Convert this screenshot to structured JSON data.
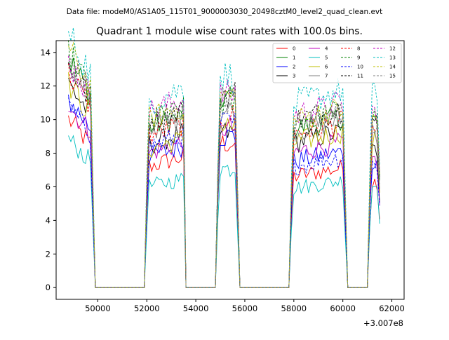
{
  "suptitle": "Data file: modeM0/AS1A05_115T01_9000003030_20498cztM0_level2_quad_clean.evt",
  "chart_data": {
    "type": "line",
    "title": "Quadrant 1 module wise count rates with 100.0s bins.",
    "xlabel": "",
    "ylabel": "",
    "x_offset_label": "+3.007e8",
    "xlim": [
      48300,
      62500
    ],
    "ylim": [
      -0.7,
      14.7
    ],
    "xticks": [
      50000,
      52000,
      54000,
      56000,
      58000,
      60000,
      62000
    ],
    "yticks": [
      0,
      2,
      4,
      6,
      8,
      10,
      12,
      14
    ],
    "legend_position": "top-right",
    "legend_columns": 4,
    "gap_value": 0.0,
    "segments": [
      {
        "start": 48800,
        "end": 49700,
        "zero_at": 49900,
        "gap_end": 51900
      },
      {
        "start": 52000,
        "end": 53500,
        "zero_at": 53600,
        "gap_end": 54800
      },
      {
        "start": 54900,
        "end": 55600,
        "zero_at": 55800,
        "gap_end": 57800
      },
      {
        "start": 57900,
        "end": 60000,
        "zero_at": 60200,
        "gap_end": 61000
      },
      {
        "start": 61100,
        "end": 61500,
        "zero_at": null,
        "gap_end": null
      }
    ],
    "series": [
      {
        "name": "0",
        "color": "#ff0000",
        "dash": "solid",
        "levels": [
          8.5,
          7.2,
          8.6,
          6.6,
          6.3
        ]
      },
      {
        "name": "1",
        "color": "#008000",
        "dash": "solid",
        "levels": [
          11.5,
          9.5,
          11.3,
          9.4,
          9.9
        ]
      },
      {
        "name": "2",
        "color": "#0000ff",
        "dash": "solid",
        "levels": [
          9.5,
          7.8,
          9.0,
          7.5,
          7.6
        ]
      },
      {
        "name": "3",
        "color": "#000000",
        "dash": "solid",
        "levels": [
          10.3,
          8.5,
          9.2,
          8.6,
          8.1
        ]
      },
      {
        "name": "4",
        "color": "#bf00bf",
        "dash": "solid",
        "levels": [
          9.2,
          8.0,
          9.5,
          8.0,
          7.6
        ]
      },
      {
        "name": "5",
        "color": "#00bfbf",
        "dash": "solid",
        "levels": [
          7.5,
          6.0,
          7.1,
          5.9,
          6.1
        ]
      },
      {
        "name": "6",
        "color": "#bfbf00",
        "dash": "solid",
        "levels": [
          10.3,
          8.2,
          9.6,
          8.6,
          8.7
        ]
      },
      {
        "name": "7",
        "color": "#808080",
        "dash": "solid",
        "levels": [
          10.9,
          9.4,
          10.5,
          9.3,
          9.2
        ]
      },
      {
        "name": "8",
        "color": "#ff0000",
        "dash": "dashed",
        "levels": [
          10.8,
          9.0,
          10.2,
          9.1,
          9.4
        ]
      },
      {
        "name": "9",
        "color": "#008000",
        "dash": "dashed",
        "levels": [
          11.8,
          9.8,
          11.0,
          9.8,
          10.1
        ]
      },
      {
        "name": "10",
        "color": "#0000ff",
        "dash": "dashed",
        "levels": [
          9.1,
          8.4,
          9.8,
          7.2,
          7.3
        ]
      },
      {
        "name": "11",
        "color": "#000000",
        "dash": "dashed",
        "levels": [
          11.2,
          9.9,
          11.6,
          9.9,
          10.0
        ]
      },
      {
        "name": "12",
        "color": "#bf00bf",
        "dash": "dashed",
        "levels": [
          11.4,
          10.4,
          11.5,
          10.2,
          10.4
        ]
      },
      {
        "name": "13",
        "color": "#00bfbf",
        "dash": "dashed",
        "levels": [
          12.8,
          11.0,
          12.6,
          10.9,
          11.4
        ]
      },
      {
        "name": "14",
        "color": "#bfbf00",
        "dash": "dashed",
        "levels": [
          12.0,
          10.0,
          11.4,
          9.9,
          10.2
        ]
      },
      {
        "name": "15",
        "color": "#808080",
        "dash": "dashed",
        "levels": [
          11.6,
          9.6,
          11.2,
          9.6,
          9.8
        ]
      }
    ]
  }
}
